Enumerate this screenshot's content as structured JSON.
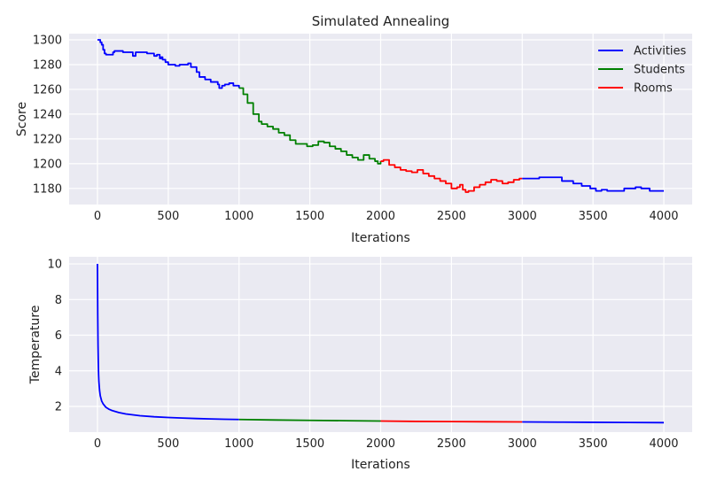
{
  "chart_data": [
    {
      "type": "line",
      "title": "Simulated Annealing",
      "xlabel": "Iterations",
      "ylabel": "Score",
      "xlim": [
        -200,
        4200
      ],
      "ylim": [
        1167,
        1305
      ],
      "xticks": [
        0,
        500,
        1000,
        1500,
        2000,
        2500,
        3000,
        3500,
        4000
      ],
      "yticks": [
        1180,
        1200,
        1220,
        1240,
        1260,
        1280,
        1300
      ],
      "grid": true,
      "legend": "top-right",
      "series": [
        {
          "name": "Activities",
          "color": "#0000ff",
          "x": [
            0,
            10,
            20,
            30,
            40,
            50,
            60,
            100,
            110,
            120,
            140,
            180,
            250,
            270,
            300,
            350,
            380,
            400,
            420,
            440,
            450,
            460,
            480,
            500,
            550,
            580,
            600,
            640,
            660,
            700,
            720,
            760,
            800,
            850,
            860,
            880,
            900,
            930,
            960,
            1000
          ],
          "y": [
            1300,
            1300,
            1298,
            1296,
            1292,
            1289,
            1288,
            1288,
            1290,
            1291,
            1291,
            1290,
            1287,
            1290,
            1290,
            1289,
            1289,
            1287,
            1288,
            1285,
            1286,
            1284,
            1282,
            1280,
            1279,
            1280,
            1280,
            1281,
            1278,
            1274,
            1270,
            1268,
            1266,
            1264,
            1261,
            1263,
            1264,
            1265,
            1263,
            1261
          ]
        },
        {
          "name": "Students",
          "color": "#008000",
          "x": [
            1000,
            1030,
            1060,
            1100,
            1140,
            1160,
            1200,
            1240,
            1280,
            1320,
            1360,
            1400,
            1440,
            1480,
            1520,
            1560,
            1600,
            1640,
            1680,
            1720,
            1760,
            1800,
            1840,
            1880,
            1920,
            1960,
            1980,
            2000
          ],
          "y": [
            1261,
            1256,
            1249,
            1240,
            1234,
            1232,
            1230,
            1228,
            1225,
            1223,
            1219,
            1216,
            1216,
            1214,
            1215,
            1218,
            1217,
            1214,
            1212,
            1210,
            1207,
            1205,
            1203,
            1207,
            1204,
            1202,
            1200,
            1202
          ]
        },
        {
          "name": "Rooms",
          "color": "#ff0000",
          "x": [
            2000,
            2020,
            2060,
            2100,
            2140,
            2180,
            2220,
            2260,
            2300,
            2340,
            2380,
            2420,
            2460,
            2500,
            2540,
            2560,
            2580,
            2600,
            2620,
            2660,
            2700,
            2740,
            2780,
            2820,
            2860,
            2900,
            2940,
            2980,
            3000
          ],
          "y": [
            1202,
            1203,
            1199,
            1197,
            1195,
            1194,
            1193,
            1195,
            1192,
            1190,
            1188,
            1186,
            1184,
            1180,
            1181,
            1183,
            1179,
            1177,
            1178,
            1181,
            1183,
            1185,
            1187,
            1186,
            1184,
            1185,
            1187,
            1188,
            1188
          ]
        },
        {
          "name": "",
          "color": "#0000ff",
          "x": [
            3000,
            3080,
            3120,
            3240,
            3280,
            3360,
            3420,
            3480,
            3520,
            3560,
            3600,
            3680,
            3720,
            3800,
            3840,
            3900,
            4000
          ],
          "y": [
            1188,
            1188,
            1189,
            1189,
            1186,
            1184,
            1182,
            1180,
            1178,
            1179,
            1178,
            1178,
            1180,
            1181,
            1180,
            1178,
            1178
          ]
        }
      ]
    },
    {
      "type": "line",
      "title": "",
      "xlabel": "Iterations",
      "ylabel": "Temperature",
      "xlim": [
        -200,
        4200
      ],
      "ylim": [
        0.56,
        10.4
      ],
      "xticks": [
        0,
        500,
        1000,
        1500,
        2000,
        2500,
        3000,
        3500,
        4000
      ],
      "yticks": [
        2,
        4,
        6,
        8,
        10
      ],
      "grid": true,
      "series": [
        {
          "name": "",
          "color": "#0000ff",
          "x": [
            0,
            2,
            4,
            6,
            8,
            10,
            15,
            20,
            30,
            40,
            60,
            80,
            100,
            150,
            200,
            300,
            400,
            500,
            600,
            700,
            800,
            900,
            1000
          ],
          "y": [
            10,
            7.2,
            5.5,
            4.5,
            3.8,
            3.4,
            2.9,
            2.6,
            2.3,
            2.15,
            1.95,
            1.85,
            1.78,
            1.66,
            1.58,
            1.48,
            1.42,
            1.38,
            1.35,
            1.32,
            1.3,
            1.28,
            1.27
          ]
        },
        {
          "name": "",
          "color": "#008000",
          "x": [
            1000,
            1250,
            1500,
            1750,
            2000
          ],
          "y": [
            1.27,
            1.24,
            1.22,
            1.2,
            1.18
          ]
        },
        {
          "name": "",
          "color": "#ff0000",
          "x": [
            2000,
            2250,
            2500,
            2750,
            3000
          ],
          "y": [
            1.18,
            1.16,
            1.15,
            1.14,
            1.13
          ]
        },
        {
          "name": "",
          "color": "#0000ff",
          "x": [
            3000,
            3250,
            3500,
            3750,
            4000
          ],
          "y": [
            1.13,
            1.12,
            1.11,
            1.1,
            1.09
          ]
        }
      ]
    }
  ]
}
